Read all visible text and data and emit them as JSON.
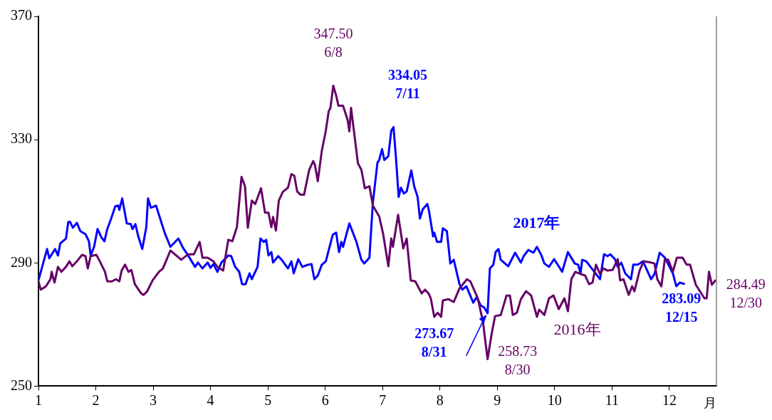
{
  "chart_data": {
    "type": "line",
    "xlabel": "月",
    "xlim": [
      1,
      12.82
    ],
    "xticks": [
      1,
      2,
      3,
      4,
      5,
      6,
      7,
      8,
      9,
      10,
      11,
      12
    ],
    "ylim": [
      250,
      370
    ],
    "yticks": [
      250,
      290,
      330,
      370
    ],
    "grid": false,
    "legend": false,
    "marker": "none",
    "line_style": "solid",
    "series": [
      {
        "name": "2017年",
        "color": "#0000ff",
        "x": [
          1.0,
          1.15,
          1.19,
          1.29,
          1.34,
          1.38,
          1.48,
          1.52,
          1.55,
          1.6,
          1.67,
          1.73,
          1.82,
          1.88,
          1.91,
          1.97,
          2.03,
          2.1,
          2.15,
          2.2,
          2.26,
          2.34,
          2.39,
          2.41,
          2.46,
          2.54,
          2.61,
          2.64,
          2.69,
          2.74,
          2.81,
          2.88,
          2.91,
          2.96,
          3.05,
          3.14,
          3.2,
          3.3,
          3.44,
          3.52,
          3.61,
          3.73,
          3.78,
          3.86,
          3.95,
          4.0,
          4.05,
          4.12,
          4.19,
          4.31,
          4.36,
          4.43,
          4.5,
          4.55,
          4.61,
          4.68,
          4.72,
          4.82,
          4.87,
          4.93,
          4.97,
          5.01,
          5.06,
          5.09,
          5.18,
          5.24,
          5.35,
          5.41,
          5.45,
          5.53,
          5.6,
          5.7,
          5.76,
          5.81,
          5.87,
          5.94,
          6.01,
          6.13,
          6.19,
          6.24,
          6.28,
          6.31,
          6.42,
          6.54,
          6.63,
          6.68,
          6.77,
          6.83,
          6.91,
          6.94,
          6.99,
          7.03,
          7.1,
          7.15,
          7.19,
          7.23,
          7.28,
          7.32,
          7.37,
          7.42,
          7.5,
          7.55,
          7.61,
          7.65,
          7.7,
          7.78,
          7.81,
          7.88,
          7.9,
          7.95,
          8.02,
          8.05,
          8.12,
          8.18,
          8.24,
          8.34,
          8.39,
          8.46,
          8.58,
          8.64,
          8.71,
          8.77,
          8.83,
          8.87,
          8.93,
          8.97,
          9.02,
          9.06,
          9.19,
          9.31,
          9.41,
          9.46,
          9.54,
          9.63,
          9.69,
          9.77,
          9.82,
          9.9,
          9.99,
          10.07,
          10.13,
          10.23,
          10.35,
          10.41,
          10.45,
          10.48,
          10.55,
          10.79,
          10.86,
          10.92,
          10.97,
          11.05,
          11.1,
          11.16,
          11.23,
          11.33,
          11.37,
          11.45,
          11.54,
          11.68,
          11.74,
          11.83,
          11.92,
          12.06,
          12.12,
          12.18,
          12.27
        ],
        "values": [
          284.3,
          294.5,
          291.5,
          294.5,
          292.4,
          296.3,
          297.9,
          303.3,
          303.3,
          301.4,
          303.0,
          300.3,
          299.3,
          297.0,
          292.4,
          295.2,
          301.0,
          298.2,
          297.0,
          301.0,
          304.0,
          308.4,
          308.6,
          307.2,
          310.9,
          302.8,
          302.6,
          301.0,
          302.6,
          298.6,
          294.5,
          301.6,
          310.9,
          307.9,
          308.6,
          303.3,
          299.8,
          295.2,
          297.9,
          294.9,
          292.4,
          288.7,
          290.1,
          288.2,
          290.1,
          288.4,
          289.6,
          287.1,
          290.1,
          292.4,
          292.2,
          288.7,
          287.1,
          283.1,
          283.1,
          286.6,
          284.7,
          288.7,
          297.9,
          296.8,
          297.5,
          292.4,
          293.5,
          290.1,
          292.2,
          291.0,
          288.2,
          290.5,
          286.6,
          291.2,
          288.7,
          289.4,
          289.6,
          284.7,
          285.9,
          289.4,
          290.5,
          299.1,
          299.8,
          293.5,
          296.8,
          295.2,
          302.8,
          297.0,
          291.0,
          289.8,
          291.7,
          309.5,
          322.5,
          323.4,
          326.9,
          323.4,
          324.6,
          332.9,
          334.05,
          324.8,
          311.4,
          314.4,
          312.5,
          313.2,
          320.0,
          314.9,
          311.4,
          304.4,
          307.4,
          309.1,
          306.7,
          298.6,
          299.8,
          296.8,
          296.8,
          301.2,
          300.3,
          289.8,
          291.0,
          283.1,
          281.3,
          282.4,
          277.1,
          278.9,
          276.2,
          275.5,
          273.67,
          288.2,
          289.4,
          293.5,
          294.5,
          291.0,
          288.9,
          293.3,
          290.1,
          292.2,
          294.2,
          293.3,
          295.2,
          292.4,
          289.8,
          288.7,
          291.2,
          288.9,
          287.1,
          293.5,
          289.8,
          289.4,
          286.6,
          291.0,
          290.5,
          284.7,
          292.8,
          292.2,
          292.8,
          291.2,
          288.7,
          290.1,
          286.6,
          284.7,
          289.4,
          289.4,
          290.5,
          284.7,
          286.4,
          293.3,
          291.7,
          286.6,
          282.4,
          283.6,
          283.09
        ]
      },
      {
        "name": "2016年",
        "color": "#660066",
        "x": [
          1.0,
          1.04,
          1.13,
          1.21,
          1.23,
          1.28,
          1.34,
          1.4,
          1.48,
          1.54,
          1.59,
          1.67,
          1.76,
          1.82,
          1.86,
          1.91,
          2.01,
          2.07,
          2.16,
          2.2,
          2.28,
          2.35,
          2.41,
          2.45,
          2.51,
          2.57,
          2.62,
          2.68,
          2.79,
          2.83,
          2.89,
          2.99,
          3.1,
          3.17,
          3.3,
          3.49,
          3.61,
          3.71,
          3.81,
          3.86,
          3.95,
          4.05,
          4.12,
          4.22,
          4.31,
          4.38,
          4.46,
          4.54,
          4.6,
          4.65,
          4.72,
          4.78,
          4.88,
          4.95,
          5.01,
          5.06,
          5.09,
          5.14,
          5.19,
          5.26,
          5.35,
          5.41,
          5.46,
          5.51,
          5.57,
          5.63,
          5.72,
          5.79,
          5.82,
          5.87,
          5.94,
          6.01,
          6.06,
          6.09,
          6.14,
          6.19,
          6.23,
          6.31,
          6.39,
          6.42,
          6.45,
          6.57,
          6.63,
          6.69,
          6.77,
          6.83,
          6.94,
          7.01,
          7.1,
          7.15,
          7.18,
          7.27,
          7.36,
          7.42,
          7.49,
          7.57,
          7.68,
          7.74,
          7.8,
          7.84,
          7.9,
          7.96,
          8.02,
          8.05,
          8.15,
          8.24,
          8.34,
          8.47,
          8.53,
          8.66,
          8.75,
          8.83,
          8.9,
          8.96,
          9.06,
          9.16,
          9.22,
          9.27,
          9.34,
          9.41,
          9.5,
          9.59,
          9.69,
          9.73,
          9.82,
          9.9,
          9.98,
          10.07,
          10.17,
          10.23,
          10.29,
          10.36,
          10.45,
          10.53,
          10.6,
          10.66,
          10.72,
          10.79,
          10.85,
          10.92,
          11.01,
          11.1,
          11.14,
          11.2,
          11.29,
          11.35,
          11.39,
          11.48,
          11.55,
          11.68,
          11.74,
          11.79,
          11.86,
          11.92,
          11.98,
          12.06,
          12.13,
          12.23,
          12.3,
          12.36,
          12.46,
          12.61,
          12.65,
          12.69,
          12.74,
          12.81
        ],
        "values": [
          284.0,
          281.3,
          282.4,
          284.7,
          287.1,
          283.6,
          288.7,
          287.1,
          288.7,
          290.5,
          288.9,
          290.5,
          292.6,
          292.2,
          288.2,
          292.2,
          292.6,
          290.5,
          287.1,
          284.0,
          284.0,
          284.7,
          284.0,
          287.5,
          289.4,
          287.1,
          287.7,
          283.1,
          280.1,
          279.6,
          280.6,
          284.3,
          287.1,
          288.2,
          294.0,
          291.0,
          292.8,
          292.8,
          296.8,
          291.7,
          291.7,
          290.5,
          288.7,
          287.5,
          297.5,
          297.0,
          301.6,
          317.9,
          314.9,
          301.4,
          310.2,
          309.1,
          314.2,
          306.3,
          306.3,
          301.6,
          304.9,
          300.5,
          310.2,
          313.0,
          314.4,
          318.8,
          318.3,
          313.2,
          312.1,
          312.1,
          320.2,
          323.0,
          321.8,
          316.5,
          326.4,
          332.9,
          339.2,
          340.3,
          347.5,
          344.3,
          341.0,
          341.0,
          336.4,
          332.7,
          340.3,
          322.3,
          320.2,
          314.2,
          314.9,
          308.6,
          305.1,
          299.3,
          288.9,
          297.9,
          295.2,
          305.6,
          294.7,
          297.9,
          284.3,
          284.0,
          280.1,
          281.3,
          280.1,
          278.5,
          272.5,
          273.8,
          272.5,
          277.8,
          278.2,
          277.3,
          281.7,
          284.7,
          284.0,
          278.5,
          270.8,
          258.73,
          266.9,
          272.7,
          273.1,
          279.4,
          279.4,
          273.1,
          273.8,
          278.2,
          280.8,
          279.4,
          272.5,
          274.8,
          273.1,
          278.5,
          279.4,
          275.0,
          278.5,
          274.3,
          284.7,
          287.1,
          286.4,
          285.9,
          283.1,
          283.6,
          289.4,
          286.4,
          288.2,
          287.5,
          287.7,
          291.2,
          284.3,
          284.7,
          279.6,
          282.4,
          280.8,
          287.5,
          290.5,
          290.1,
          289.8,
          284.7,
          282.4,
          291.2,
          291.0,
          287.1,
          291.7,
          291.7,
          289.4,
          289.4,
          282.9,
          278.5,
          278.5,
          287.1,
          282.9,
          284.49
        ]
      }
    ],
    "annotations": [
      {
        "text": "347.50\n6/8",
        "x": 6.14,
        "y": 347.5
      },
      {
        "text": "334.05\n7/11",
        "x": 7.19,
        "y": 334.05
      },
      {
        "text": "273.67\n8/31",
        "x": 8.83,
        "y": 273.67
      },
      {
        "text": "258.73\n8/30",
        "x": 8.83,
        "y": 258.73
      },
      {
        "text": "283.09\n12/15",
        "x": 12.27,
        "y": 283.09
      },
      {
        "text": "284.49\n12/30",
        "x": 12.81,
        "y": 284.49
      }
    ]
  }
}
